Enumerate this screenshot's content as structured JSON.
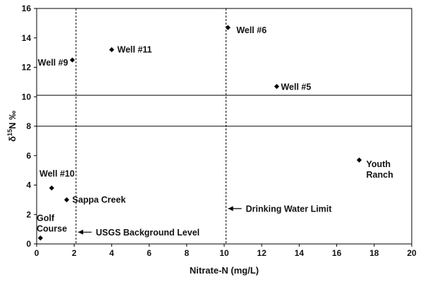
{
  "chart_data": {
    "type": "scatter",
    "title": "",
    "xlabel": "Nitrate-N (mg/L)",
    "ylabel_main": "δ",
    "ylabel_sup": "15",
    "ylabel_rest": "N ‰",
    "xlim": [
      0,
      20
    ],
    "ylim": [
      0,
      16
    ],
    "xticks": [
      "0",
      "2",
      "4",
      "6",
      "8",
      "10",
      "12",
      "14",
      "16",
      "18",
      "20"
    ],
    "yticks": [
      "0",
      "2",
      "4",
      "6",
      "8",
      "10",
      "12",
      "14",
      "16"
    ],
    "grid": false,
    "legend": "none",
    "marker_color": "#000000",
    "points": [
      {
        "label_lines": [
          "Golf",
          "Course"
        ],
        "x": 0.2,
        "y": 0.4
      },
      {
        "label_lines": [
          "Sappa Creek"
        ],
        "x": 1.6,
        "y": 3.0
      },
      {
        "label_lines": [
          "Well #10"
        ],
        "x": 0.8,
        "y": 3.8
      },
      {
        "label_lines": [
          "Well #9"
        ],
        "x": 1.9,
        "y": 12.5
      },
      {
        "label_lines": [
          "Well #11"
        ],
        "x": 4.0,
        "y": 13.2
      },
      {
        "label_lines": [
          "Well #6"
        ],
        "x": 10.2,
        "y": 14.7
      },
      {
        "label_lines": [
          "Well #5"
        ],
        "x": 12.8,
        "y": 10.7
      },
      {
        "label_lines": [
          "Youth",
          "Ranch"
        ],
        "x": 17.2,
        "y": 5.7
      }
    ],
    "reference_lines": {
      "vertical": [
        {
          "x": 2.1,
          "label": "USGS Background Level",
          "label_y": 0.8
        },
        {
          "x": 10.1,
          "label": "Drinking Water Limit",
          "label_y": 2.4
        }
      ],
      "horizontal": [
        {
          "y": 10.1
        },
        {
          "y": 8.0
        }
      ]
    }
  }
}
